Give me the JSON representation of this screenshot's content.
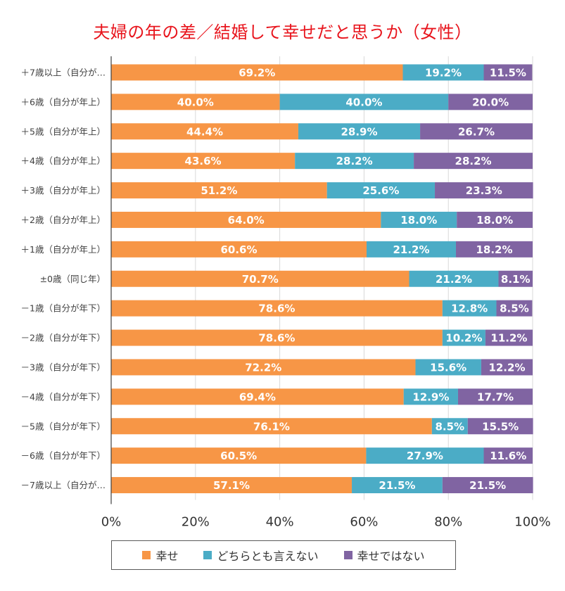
{
  "chart_data": {
    "type": "bar",
    "orientation": "horizontal",
    "stacked": "percent",
    "title": "夫婦の年の差／結婚して幸せだと思うか（女性）",
    "categories": [
      "＋7歳以上（自分が…",
      "＋6歳（自分が年上）",
      "＋5歳（自分が年上）",
      "＋4歳（自分が年上）",
      "＋3歳（自分が年上）",
      "＋2歳（自分が年上）",
      "＋1歳（自分が年上）",
      "±0歳（同じ年）",
      "－1歳（自分が年下）",
      "－2歳（自分が年下）",
      "－3歳（自分が年下）",
      "－4歳（自分が年下）",
      "－5歳（自分が年下）",
      "－6歳（自分が年下）",
      "－7歳以上（自分が…"
    ],
    "series": [
      {
        "name": "幸せ",
        "color": "#f79646",
        "values": [
          69.2,
          40.0,
          44.4,
          43.6,
          51.2,
          64.0,
          60.6,
          70.7,
          78.6,
          78.6,
          72.2,
          69.4,
          76.1,
          60.5,
          57.1
        ]
      },
      {
        "name": "どちらとも言えない",
        "color": "#4bacc6",
        "values": [
          19.2,
          40.0,
          28.9,
          28.2,
          25.6,
          18.0,
          21.2,
          21.2,
          12.8,
          10.2,
          15.6,
          12.9,
          8.5,
          27.9,
          21.5
        ]
      },
      {
        "name": "幸せではない",
        "color": "#8064a2",
        "values": [
          11.5,
          20.0,
          26.7,
          28.2,
          23.3,
          18.0,
          18.2,
          8.1,
          8.5,
          11.2,
          12.2,
          17.7,
          15.5,
          11.6,
          21.5
        ]
      }
    ],
    "xlim": [
      0,
      100
    ],
    "xticks": [
      "0%",
      "20%",
      "40%",
      "60%",
      "80%",
      "100%"
    ],
    "grid": true,
    "legend_position": "bottom"
  }
}
